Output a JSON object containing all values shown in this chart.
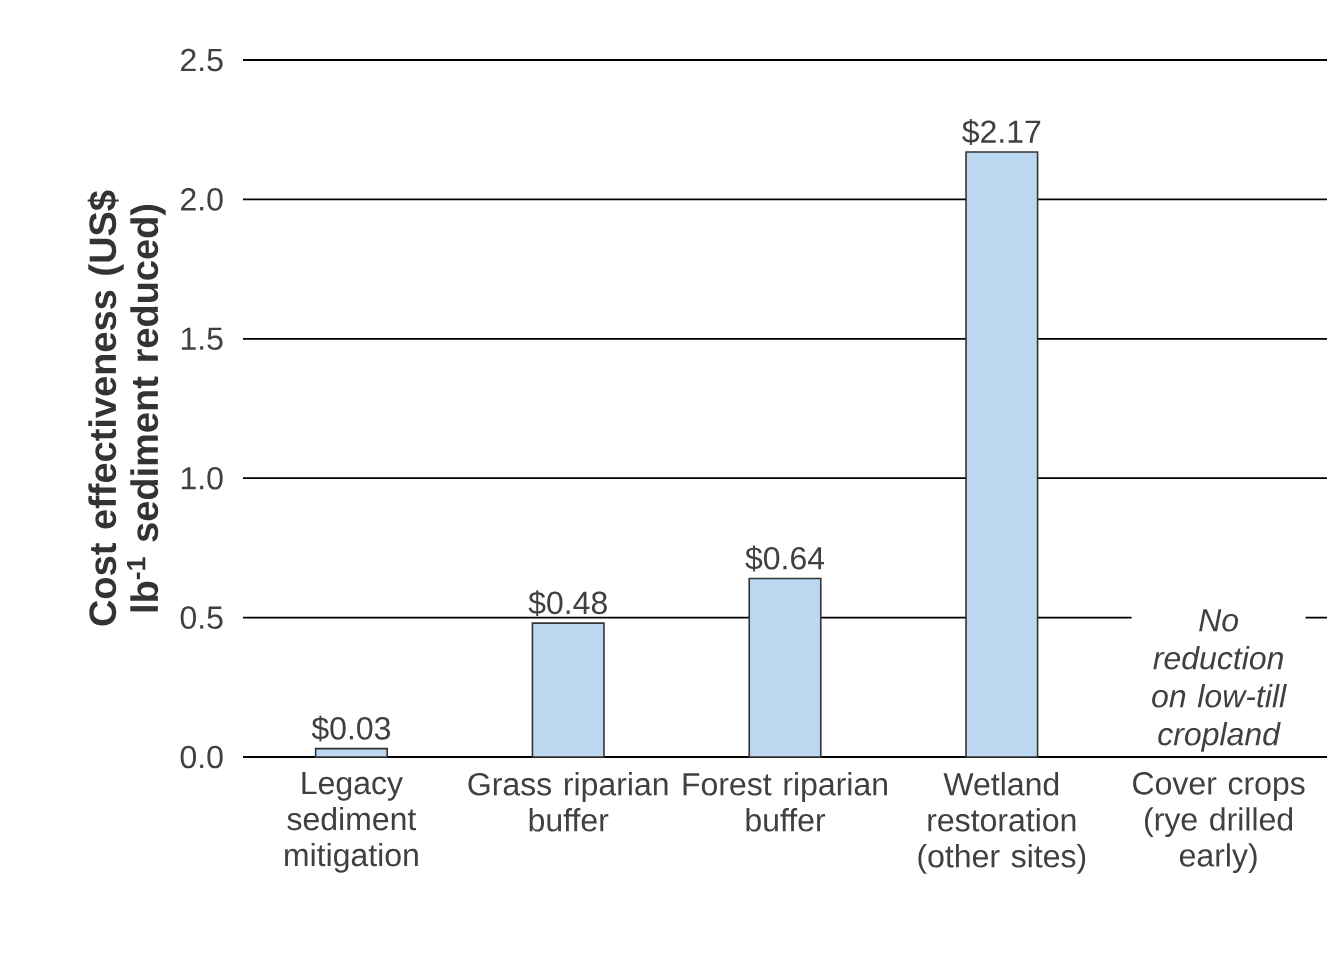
{
  "chart_data": {
    "type": "bar",
    "ylabel": "Cost effectiveness (US$ lb$^{-1}$ sediment reduced)",
    "categories": [
      "Legacy sediment mitigation",
      "Grass riparian buffer",
      "Forest riparian buffer",
      "Wetland restoration (other sites)",
      "Cover crops (rye drilled early)"
    ],
    "values": [
      0.03,
      0.48,
      0.64,
      2.17,
      null
    ],
    "value_labels": [
      "$0.03",
      "$0.48",
      "$0.64",
      "$2.17",
      null
    ],
    "color": "#bcd8f0",
    "ylim": [
      0,
      2.5
    ],
    "yticks": [
      {
        "value": 0,
        "label": "0.0"
      },
      {
        "value": 0.5,
        "label": "0.5"
      },
      {
        "value": 1,
        "label": "1.0"
      },
      {
        "value": 1.5,
        "label": "1.5"
      },
      {
        "value": 2,
        "label": "2.0"
      },
      {
        "value": 2.5,
        "label": "2.5"
      }
    ],
    "grid": "y",
    "annotations": [
      "No reduction on low-till cropland"
    ]
  }
}
